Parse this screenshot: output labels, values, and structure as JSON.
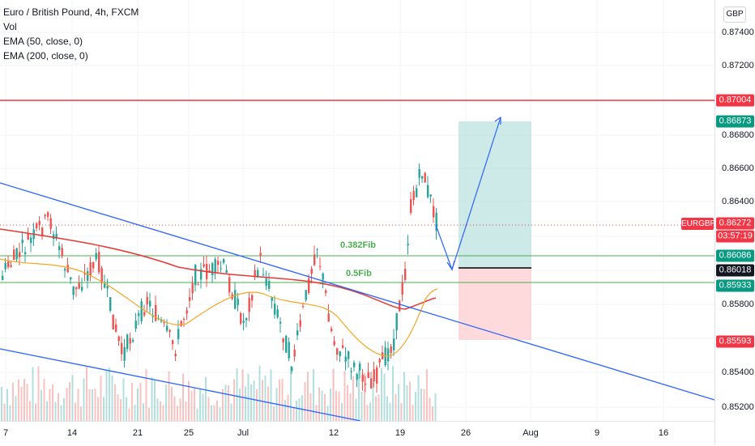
{
  "legend": {
    "title": "Euro / British Pound, 4h, FXCM",
    "vol": "Vol",
    "ema50": "EMA (50, close, 0)",
    "ema200": "EMA (200, close, 0)"
  },
  "currency": "GBP",
  "symbol_tag": "EURGBP",
  "price_ticks": [
    "0.87400",
    "0.87200",
    "0.86800",
    "0.86600",
    "0.86400",
    "0.85800",
    "0.85400",
    "0.85200"
  ],
  "price_tags": {
    "line_red": "0.87004",
    "target": "0.86873",
    "last": "0.86272",
    "countdown": "03:57:19",
    "entry_upper": "0.86086",
    "entry": "0.86018",
    "lower_green": "0.85933",
    "stop": "0.85593"
  },
  "fib_labels": {
    "f382": "0.382Fib",
    "f05": "0.5Fib"
  },
  "time_ticks": [
    "7",
    "14",
    "21",
    "25",
    "Jul",
    "12",
    "19",
    "26",
    "Aug",
    "9",
    "16"
  ],
  "colors": {
    "up": "#26a69a",
    "down": "#ef5350",
    "ema50": "#f5a623",
    "ema200": "#e53935",
    "trend": "#2962ff",
    "red_line": "#f23645",
    "fib": "#4caf50",
    "target_zone": "#b2dfdb",
    "stop_zone": "#ffcdd2"
  }
}
